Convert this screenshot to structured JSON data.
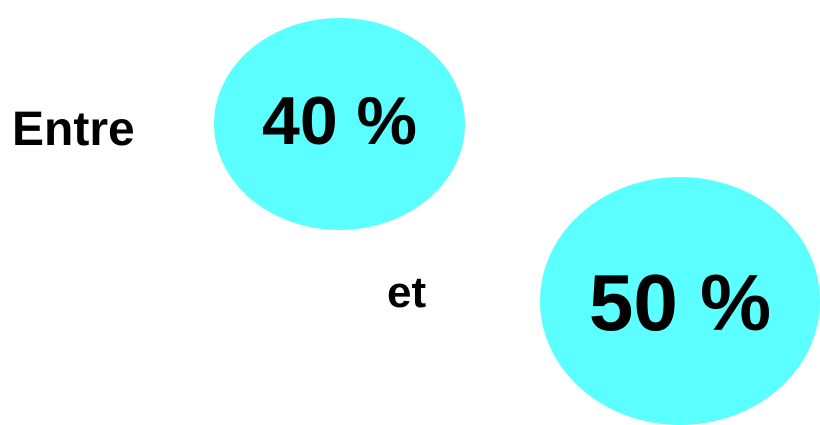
{
  "text": {
    "entre": "Entre",
    "first_value": "40 %",
    "connector": "et",
    "second_value": "50 %"
  },
  "colors": {
    "background": "#ffffff",
    "bubble_fill": "#5cffff",
    "text": "#000000"
  }
}
